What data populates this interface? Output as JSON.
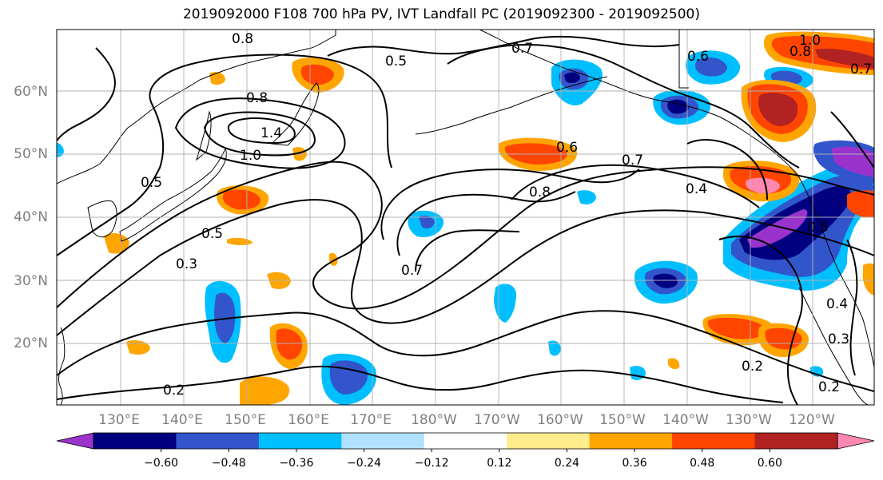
{
  "title": "2019092000 F108 700 hPa PV, IVT Landfall PC (2019092300 - 2019092500)",
  "lat_labels": [
    "60°N",
    "50°N",
    "40°N",
    "30°N",
    "20°N"
  ],
  "lon_labels": [
    "130°E",
    "140°E",
    "150°E",
    "160°E",
    "170°E",
    "180°W",
    "170°W",
    "160°W",
    "150°W",
    "140°W",
    "130°W",
    "120°W"
  ],
  "contour_labels": [
    "0.8",
    "0.5",
    "0.7",
    "0.6",
    "1.0",
    "0.8",
    "0.7",
    "0.8",
    "1.4",
    "1.0",
    "0.5",
    "0.5",
    "0.3",
    "0.6",
    "0.8",
    "0.7",
    "0.4",
    "0.7",
    "0.5",
    "0.4",
    "0.3",
    "0.2",
    "0.2",
    "0.2"
  ],
  "colorbar": {
    "ticks": [
      "−0.60",
      "−0.48",
      "−0.36",
      "−0.24",
      "−0.12",
      "0.12",
      "0.24",
      "0.36",
      "0.48",
      "0.60"
    ],
    "colors": [
      "#9933cc",
      "#000080",
      "#3355cc",
      "#00bfff",
      "#b0e2ff",
      "#ffffff",
      "#ffec8b",
      "#ffa500",
      "#ff4500",
      "#b22222",
      "#ff88b0"
    ]
  }
}
